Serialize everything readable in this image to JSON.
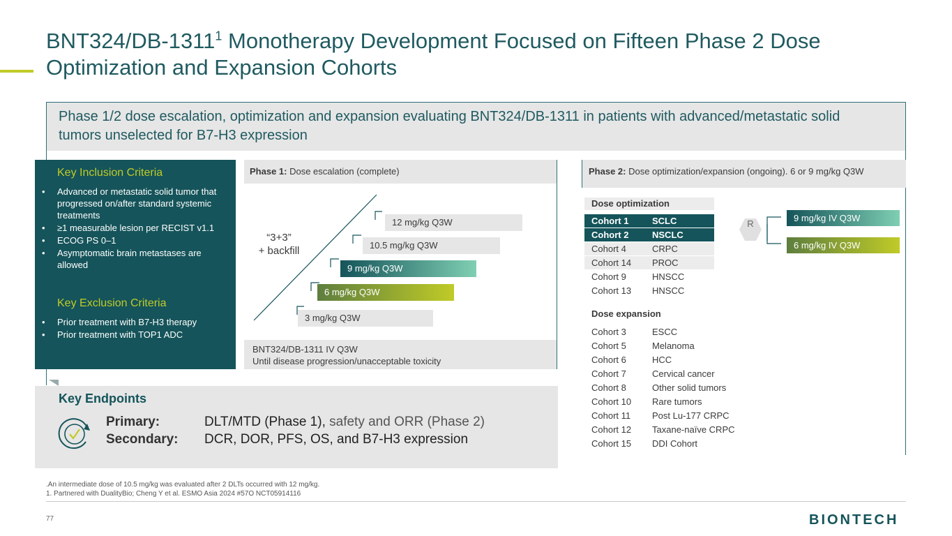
{
  "title": {
    "main": "BNT324/DB-1311",
    "sup": "1",
    "rest": " Monotherapy Development Focused on Fifteen Phase 2 Dose Optimization and Expansion Cohorts"
  },
  "banner": "Phase 1/2 dose escalation, optimization and expansion evaluating BNT324/DB-1311 in patients with advanced/metastatic solid tumors unselected for B7-H3 expression",
  "inclusion": {
    "heading": "Key Inclusion Criteria",
    "items": [
      "Advanced or metastatic solid tumor that progressed on/after standard systemic treatments",
      "≥1 measurable lesion per RECIST v1.1",
      "ECOG PS 0–1",
      "Asymptomatic brain metastases are allowed"
    ]
  },
  "exclusion": {
    "heading": "Key Exclusion Criteria",
    "items": [
      "Prior treatment with B7-H3 therapy",
      "Prior treatment with TOP1 ADC"
    ]
  },
  "phase1": {
    "label": "Phase 1:",
    "desc": " Dose escalation (complete)",
    "design_line1": "“3+3”",
    "design_line2": "+ backfill",
    "doses": [
      "12 mg/kg Q3W",
      "10.5 mg/kg Q3W",
      "9 mg/kg Q3W",
      "6 mg/kg Q3W",
      "3 mg/kg Q3W"
    ],
    "footer_line1": "BNT324/DB-1311 IV Q3W",
    "footer_line2": "Until disease progression/unacceptable toxicity"
  },
  "phase2": {
    "label": "Phase 2:",
    "desc": " Dose optimization/expansion (ongoing). 6 or 9 mg/kg Q3W",
    "randomization": "R",
    "arm_high": "9 mg/kg IV Q3W",
    "arm_low": "6 mg/kg IV Q3W",
    "optimization_heading": "Dose optimization",
    "optimization": [
      {
        "cohort": "Cohort 1",
        "tumor": "SCLC"
      },
      {
        "cohort": "Cohort 2",
        "tumor": "NSCLC"
      },
      {
        "cohort": "Cohort 4",
        "tumor": "CRPC"
      },
      {
        "cohort": "Cohort 14",
        "tumor": "PROC"
      },
      {
        "cohort": "Cohort 9",
        "tumor": "HNSCC"
      },
      {
        "cohort": "Cohort 13",
        "tumor": "HNSCC"
      }
    ],
    "expansion_heading": "Dose expansion",
    "expansion": [
      {
        "cohort": "Cohort 3",
        "tumor": "ESCC"
      },
      {
        "cohort": "Cohort 5",
        "tumor": "Melanoma"
      },
      {
        "cohort": "Cohort 6",
        "tumor": "HCC"
      },
      {
        "cohort": "Cohort 7",
        "tumor": "Cervical cancer"
      },
      {
        "cohort": "Cohort 8",
        "tumor": "Other solid tumors"
      },
      {
        "cohort": "Cohort 10",
        "tumor": "Rare tumors"
      },
      {
        "cohort": "Cohort 11",
        "tumor": "Post Lu-177 CRPC"
      },
      {
        "cohort": "Cohort 12",
        "tumor": "Taxane-naïve CRPC"
      },
      {
        "cohort": "Cohort 15",
        "tumor": "DDI Cohort"
      }
    ]
  },
  "endpoints": {
    "heading": "Key Endpoints",
    "primary_label": "Primary:",
    "primary_a": "DLT/MTD (Phase 1),",
    "primary_b": " safety and ORR (Phase 2)",
    "secondary_label": "Secondary:",
    "secondary_value": "DCR, DOR, PFS, OS, and B7-H3 expression"
  },
  "footnotes": {
    "line1": ".An intermediate dose of 10.5 mg/kg was evaluated after 2 DLTs occurred with 12 mg/kg.",
    "line2": "1. Partnered with DualityBio;  Cheng Y et al. ESMO Asia 2024 #57O NCT05914116"
  },
  "page_number": "77",
  "logo": "BIONTECH",
  "colors": {
    "teal": "#15545a",
    "lime": "#c0cb27",
    "grey": "#e6e6e6"
  }
}
